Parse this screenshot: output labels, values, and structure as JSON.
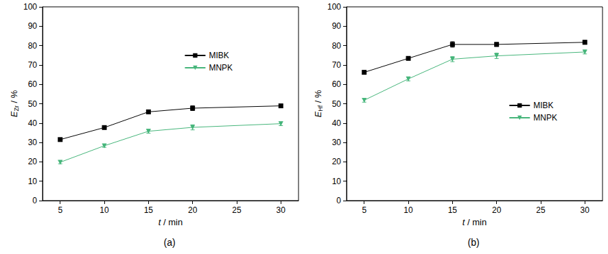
{
  "chart_data": [
    {
      "type": "line",
      "label": "(a)",
      "xlabel": {
        "main": "t",
        "unit": " / min"
      },
      "ylabel": {
        "main": "E",
        "sub": "Zr",
        "unit": " / %"
      },
      "x": [
        5,
        10,
        15,
        20,
        30
      ],
      "xlim": [
        3,
        32
      ],
      "xticks": [
        5,
        10,
        15,
        20,
        25,
        30
      ],
      "ylim": [
        0,
        100
      ],
      "yticks": [
        0,
        10,
        20,
        30,
        40,
        50,
        60,
        70,
        80,
        90,
        100
      ],
      "grid": false,
      "legend": "upper right",
      "series": [
        {
          "name": "MIBK",
          "color": "#000000",
          "marker": "square",
          "values": [
            31.5,
            37.7,
            45.8,
            47.7,
            48.9
          ],
          "errors": [
            0.8,
            0.8,
            1.0,
            1.2,
            0.8
          ]
        },
        {
          "name": "MNPK",
          "color": "#45b57a",
          "marker": "triangle-down",
          "values": [
            19.8,
            28.3,
            35.8,
            37.8,
            39.7
          ],
          "errors": [
            0.8,
            0.8,
            1.0,
            1.3,
            1.0
          ]
        }
      ]
    },
    {
      "type": "line",
      "label": "(b)",
      "xlabel": {
        "main": "t",
        "unit": " / min"
      },
      "ylabel": {
        "main": "E",
        "sub": "Hf",
        "unit": " / %"
      },
      "x": [
        5,
        10,
        15,
        20,
        30
      ],
      "xlim": [
        3,
        32
      ],
      "xticks": [
        5,
        10,
        15,
        20,
        25,
        30
      ],
      "ylim": [
        0,
        100
      ],
      "yticks": [
        0,
        10,
        20,
        30,
        40,
        50,
        60,
        70,
        80,
        90,
        100
      ],
      "grid": false,
      "legend": "center right",
      "series": [
        {
          "name": "MIBK",
          "color": "#000000",
          "marker": "square",
          "values": [
            66.2,
            73.4,
            80.6,
            80.6,
            81.7
          ],
          "errors": [
            0.9,
            0.8,
            1.4,
            1.0,
            1.0
          ]
        },
        {
          "name": "MNPK",
          "color": "#45b57a",
          "marker": "triangle-down",
          "values": [
            51.8,
            62.8,
            73.0,
            74.7,
            76.7
          ],
          "errors": [
            1.0,
            1.0,
            1.3,
            1.4,
            1.0
          ]
        }
      ]
    }
  ]
}
